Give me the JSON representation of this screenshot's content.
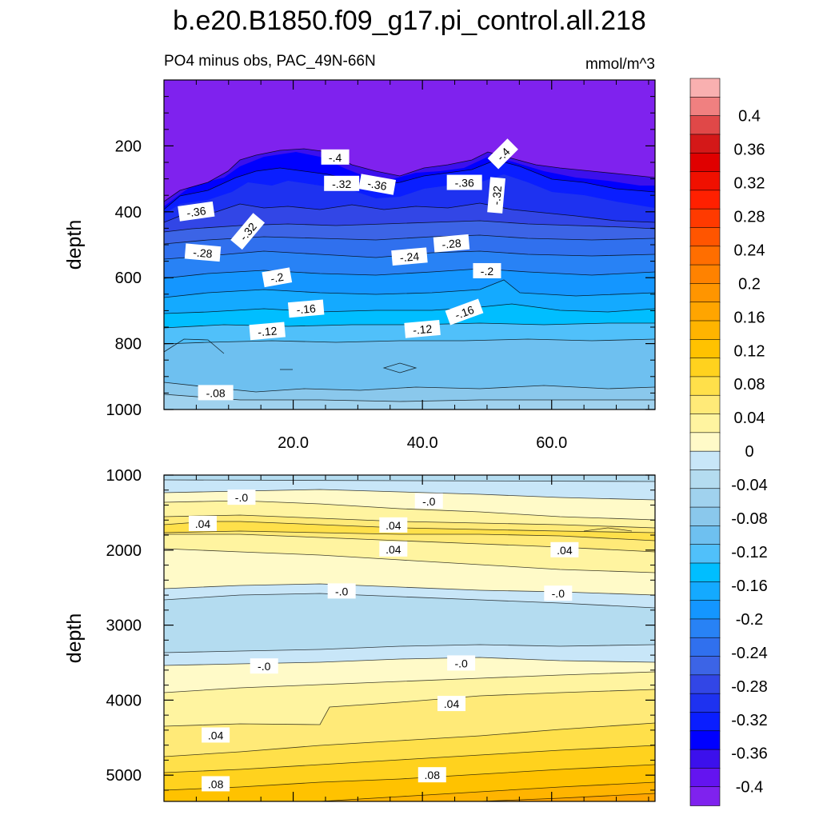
{
  "title": "b.e20.B1850.f09_g17.pi_control.all.218",
  "chart_data": [
    {
      "type": "contour",
      "panel": "upper",
      "subtitle_left": "PO4 minus obs, PAC_49N-66N",
      "subtitle_right": "mmol/m^3",
      "ylabel": "depth",
      "xlim": [
        0,
        76
      ],
      "ylim": [
        1000,
        0
      ],
      "x_ticks": [
        "20.0",
        "40.0",
        "60.0"
      ],
      "x_tick_values": [
        20,
        40,
        60
      ],
      "y_ticks": [
        "200",
        "400",
        "600",
        "800",
        "1000"
      ],
      "y_tick_values": [
        200,
        400,
        600,
        800,
        1000
      ],
      "contour_labels": [
        {
          "text": "-.4",
          "x": 26.5,
          "y": 235,
          "angle": 0
        },
        {
          "text": "-.4",
          "x": 52.5,
          "y": 225,
          "angle": -45
        },
        {
          "text": "-.32",
          "x": 27.5,
          "y": 315,
          "angle": 0
        },
        {
          "text": "-.36",
          "x": 33,
          "y": 318,
          "angle": 10
        },
        {
          "text": "-.36",
          "x": 46.5,
          "y": 312,
          "angle": 0
        },
        {
          "text": "-.32",
          "x": 51.5,
          "y": 350,
          "angle": -85
        },
        {
          "text": "-.36",
          "x": 5,
          "y": 400,
          "angle": -8
        },
        {
          "text": "-.32",
          "x": 13,
          "y": 460,
          "angle": -50
        },
        {
          "text": "-.28",
          "x": 6,
          "y": 525,
          "angle": 5
        },
        {
          "text": "-.28",
          "x": 44.5,
          "y": 497,
          "angle": -5
        },
        {
          "text": "-.24",
          "x": 38,
          "y": 537,
          "angle": -5
        },
        {
          "text": "-.2",
          "x": 17.5,
          "y": 600,
          "angle": -10
        },
        {
          "text": "-.2",
          "x": 50,
          "y": 580,
          "angle": 0
        },
        {
          "text": "-.16",
          "x": 22,
          "y": 695,
          "angle": -5
        },
        {
          "text": "-.16",
          "x": 46.5,
          "y": 705,
          "angle": -20
        },
        {
          "text": "-.12",
          "x": 16,
          "y": 763,
          "angle": -5
        },
        {
          "text": "-.12",
          "x": 40,
          "y": 757,
          "angle": -5
        },
        {
          "text": "-.08",
          "x": 8,
          "y": 950,
          "angle": 0
        }
      ]
    },
    {
      "type": "contour",
      "panel": "lower",
      "ylabel": "depth",
      "xlim": [
        0,
        76
      ],
      "ylim": [
        5350,
        1000
      ],
      "y_ticks": [
        "1000",
        "2000",
        "3000",
        "4000",
        "5000"
      ],
      "y_tick_values": [
        1000,
        2000,
        3000,
        4000,
        5000
      ],
      "contour_labels": [
        {
          "text": "-.0",
          "x": 12,
          "y": 1300,
          "angle": 0
        },
        {
          "text": "-.0",
          "x": 41,
          "y": 1350,
          "angle": 0
        },
        {
          "text": ".04",
          "x": 6,
          "y": 1650,
          "angle": 0
        },
        {
          "text": ".04",
          "x": 35.5,
          "y": 1670,
          "angle": 0
        },
        {
          "text": ".04",
          "x": 35.5,
          "y": 1990,
          "angle": 0
        },
        {
          "text": ".04",
          "x": 62,
          "y": 2000,
          "angle": 0
        },
        {
          "text": "-.0",
          "x": 27.5,
          "y": 2550,
          "angle": 0
        },
        {
          "text": "-.0",
          "x": 61,
          "y": 2580,
          "angle": 0
        },
        {
          "text": "-.0",
          "x": 15.5,
          "y": 3550,
          "angle": 0
        },
        {
          "text": "-.0",
          "x": 46,
          "y": 3510,
          "angle": 0
        },
        {
          "text": ".04",
          "x": 44.5,
          "y": 4050,
          "angle": 0
        },
        {
          "text": ".04",
          "x": 8,
          "y": 4470,
          "angle": 0
        },
        {
          "text": ".08",
          "x": 41.5,
          "y": 5000,
          "angle": 0
        },
        {
          "text": ".08",
          "x": 8,
          "y": 5120,
          "angle": 0
        }
      ]
    }
  ],
  "colorbar": {
    "labels": [
      "0.4",
      "0.36",
      "0.32",
      "0.28",
      "0.24",
      "0.2",
      "0.16",
      "0.12",
      "0.08",
      "0.04",
      "0",
      "-0.04",
      "-0.08",
      "-0.12",
      "-0.16",
      "-0.2",
      "-0.24",
      "-0.28",
      "-0.32",
      "-0.36",
      "-0.4"
    ],
    "colors": [
      "#f9b0b0",
      "#f08080",
      "#e04848",
      "#d41818",
      "#e00000",
      "#f01000",
      "#ff2000",
      "#ff3a00",
      "#ff5500",
      "#ff6e00",
      "#ff8200",
      "#ff9500",
      "#ffa500",
      "#ffb400",
      "#ffc200",
      "#ffd21e",
      "#ffe04a",
      "#ffea78",
      "#fff4a0",
      "#fffac8",
      "#c8e6f8",
      "#b4dcf0",
      "#a0d2ee",
      "#8ac8ec",
      "#6ec0f0",
      "#50c0fa",
      "#00beff",
      "#14aaff",
      "#1496ff",
      "#2882f5",
      "#3070ee",
      "#3c64e6",
      "#3246e6",
      "#1e32f0",
      "#0a1eff",
      "#0000ff",
      "#3c10ec",
      "#6414f0",
      "#7f22ee"
    ]
  }
}
